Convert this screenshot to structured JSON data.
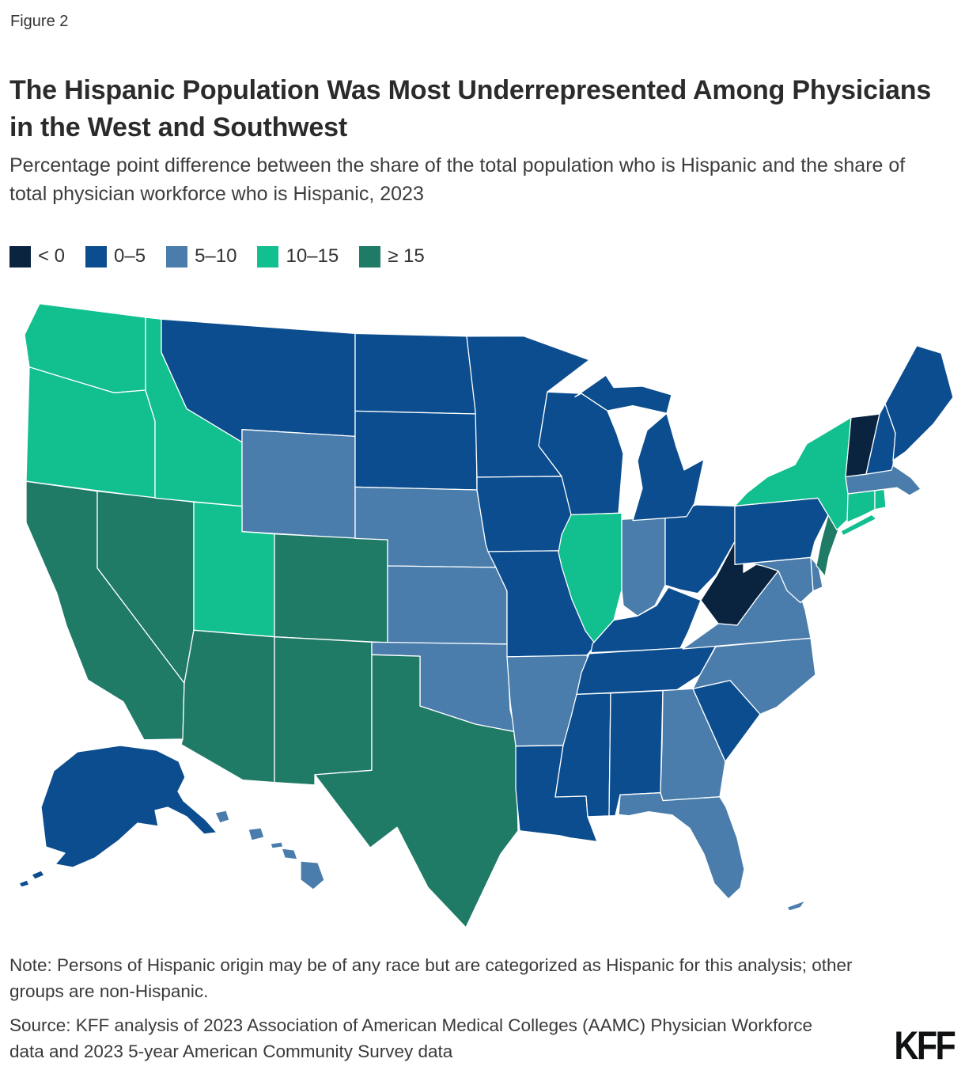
{
  "figure_label": "Figure 2",
  "title": "The Hispanic Population Was Most Underrepresented Among Physicians in the West and Southwest",
  "subtitle": "Percentage point difference between the share of the total population who is Hispanic and the share of total physician workforce who is Hispanic, 2023",
  "note": "Note: Persons of Hispanic origin may be of any race but are categorized as Hispanic for this analysis; other groups are non-Hispanic.",
  "source": "Source: KFF analysis of 2023 Association of American Medical Colleges (AAMC) Physician Workforce data and 2023 5-year American Community Survey data",
  "logo_text": "KFF",
  "chart_data": {
    "type": "heatmap",
    "subtype": "us-state-choropleth",
    "title": "The Hispanic Population Was Most Underrepresented Among Physicians in the West and Southwest",
    "unit": "percentage point difference",
    "year": 2023,
    "legend_position": "top-left",
    "legend": [
      {
        "label": "< 0",
        "color": "#0A2440"
      },
      {
        "label": "0–5",
        "color": "#0B4D8E"
      },
      {
        "label": "5–10",
        "color": "#4A7DAB"
      },
      {
        "label": "10–15",
        "color": "#11BF8F"
      },
      {
        "label": "≥ 15",
        "color": "#1F7A66"
      }
    ],
    "states": {
      "AK": "0–5",
      "AL": "0–5",
      "AR": "5–10",
      "AZ": "≥ 15",
      "CA": "≥ 15",
      "CO": "≥ 15",
      "CT": "10–15",
      "DE": "5–10",
      "FL": "5–10",
      "GA": "5–10",
      "HI": "5–10",
      "IA": "0–5",
      "ID": "10–15",
      "IL": "10–15",
      "IN": "5–10",
      "KS": "5–10",
      "KY": "0–5",
      "LA": "0–5",
      "MA": "5–10",
      "MD": "5–10",
      "ME": "0–5",
      "MI": "0–5",
      "MN": "0–5",
      "MO": "0–5",
      "MS": "0–5",
      "MT": "0–5",
      "NC": "5–10",
      "ND": "0–5",
      "NE": "5–10",
      "NH": "0–5",
      "NJ": "≥ 15",
      "NM": "≥ 15",
      "NV": "≥ 15",
      "NY": "10–15",
      "OH": "0–5",
      "OK": "5–10",
      "OR": "10–15",
      "PA": "0–5",
      "RI": "10–15",
      "SC": "0–5",
      "SD": "0–5",
      "TN": "0–5",
      "TX": "≥ 15",
      "UT": "10–15",
      "VA": "5–10",
      "VT": "< 0",
      "WA": "10–15",
      "WI": "0–5",
      "WV": "< 0",
      "WY": "5–10"
    }
  }
}
